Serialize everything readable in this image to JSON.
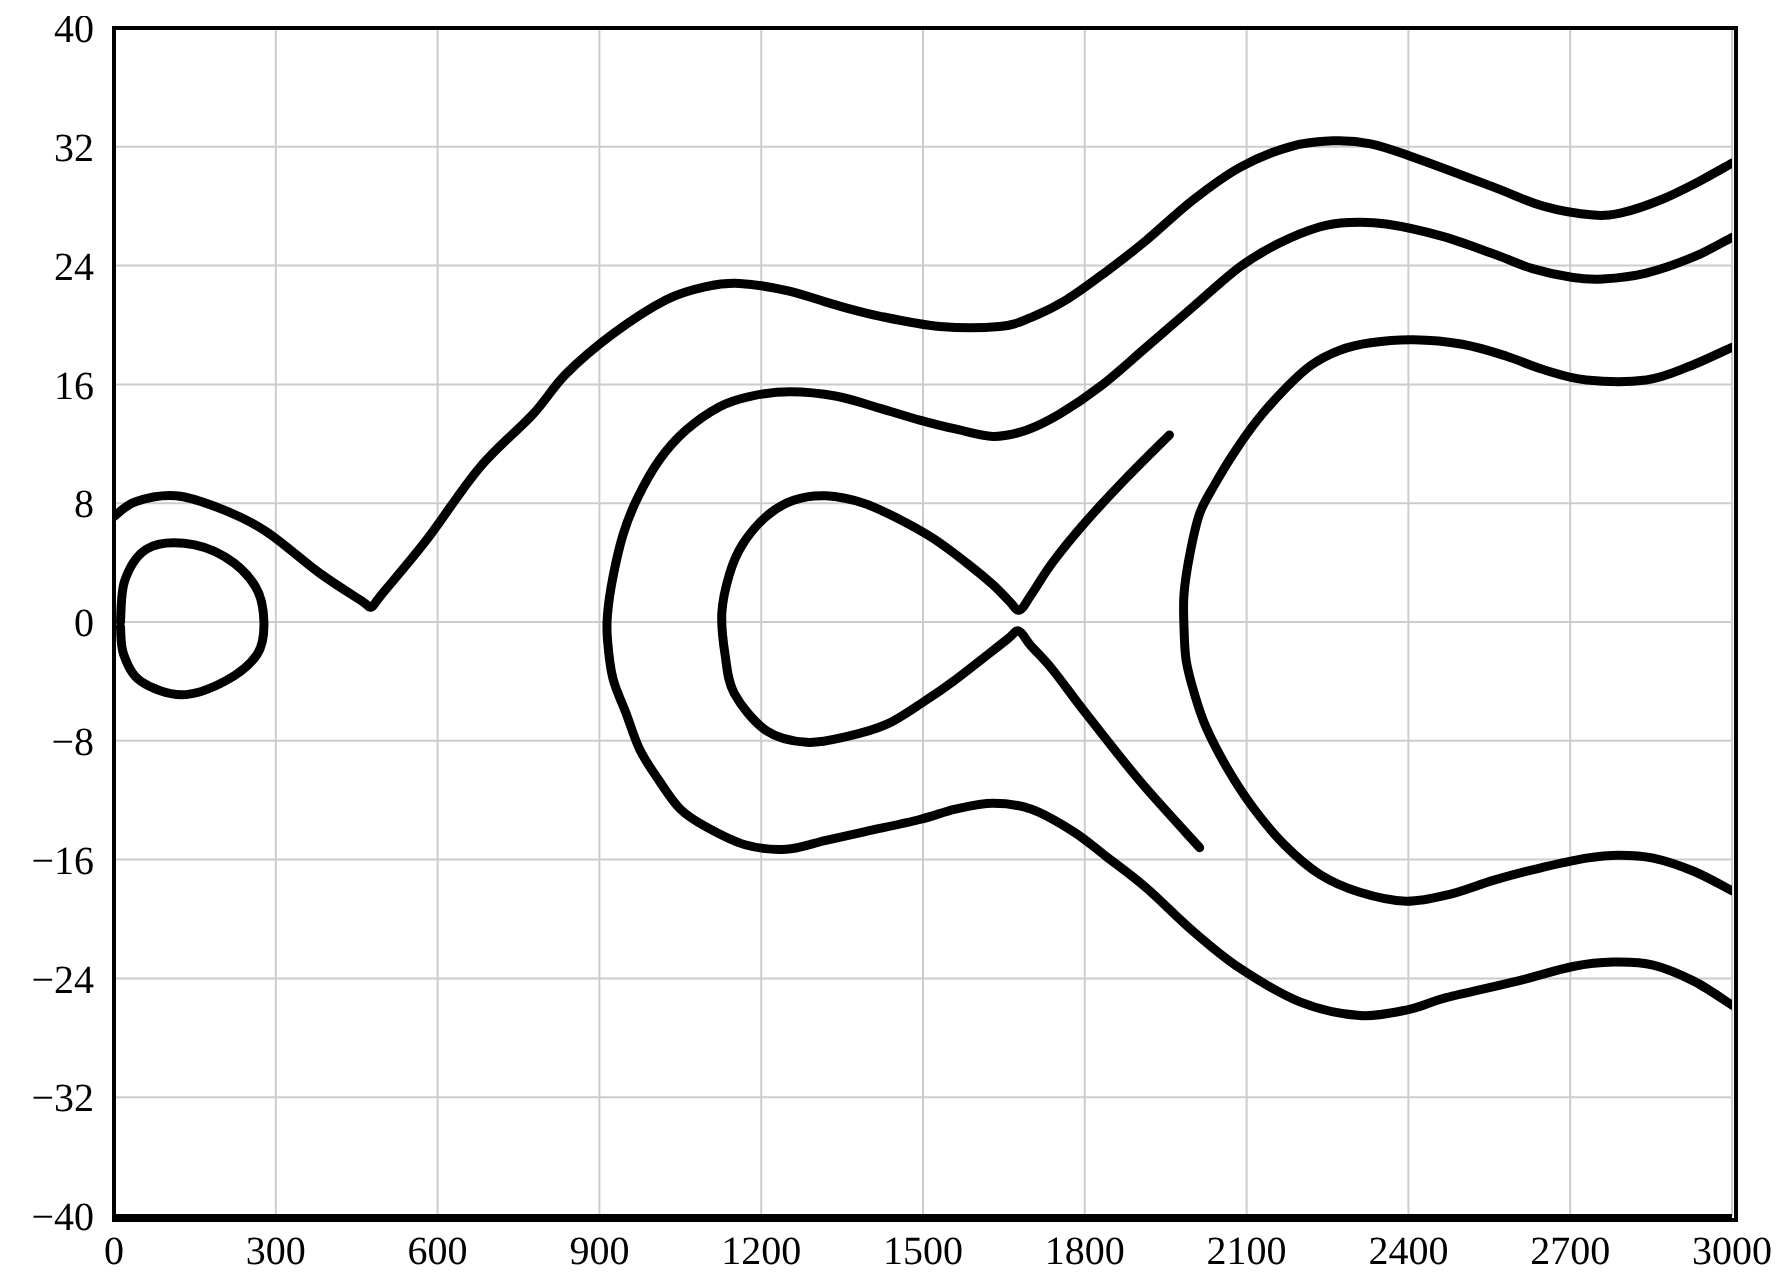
{
  "chart_data": {
    "type": "line",
    "xlim": [
      0,
      3000
    ],
    "ylim": [
      -40,
      40
    ],
    "xticks": [
      0,
      300,
      600,
      900,
      1200,
      1500,
      1800,
      2100,
      2400,
      2700,
      3000
    ],
    "yticks": [
      -40,
      -32,
      -24,
      -16,
      -8,
      0,
      8,
      16,
      24,
      32,
      40
    ],
    "grid": true,
    "marker": "none",
    "line_style": "solid",
    "series": [
      {
        "color": "#000000",
        "x": [
          3000,
          2930,
          2841,
          2760,
          2705,
          2630,
          2557,
          2460,
          2359,
          2290,
          2235,
          2160,
          2087,
          2000,
          1914,
          1830,
          1753,
          1690,
          1630,
          1560,
          1494,
          1419,
          1340,
          1253,
          1180,
          1123,
          1060,
          1011,
          970,
          944,
          925,
          915,
          915,
          925,
          950,
          975,
          1011,
          1050,
          1098,
          1170,
          1246,
          1320,
          1395,
          1494,
          1560,
          1630,
          1700,
          1778,
          1840,
          1914,
          2000,
          2087,
          2200,
          2310,
          2400,
          2470,
          2600,
          2705,
          2780,
          2854,
          2930,
          3000
        ],
        "values": [
          25.9,
          24.6,
          23.5,
          23.1,
          23.2,
          23.8,
          24.8,
          26.0,
          26.8,
          26.9,
          26.6,
          25.5,
          23.9,
          21.2,
          18.5,
          15.9,
          14.0,
          12.9,
          12.5,
          13.0,
          13.6,
          14.4,
          15.2,
          15.5,
          15.2,
          14.5,
          12.9,
          10.9,
          8.3,
          5.9,
          3.0,
          0.5,
          -1.2,
          -3.8,
          -6.2,
          -8.6,
          -10.7,
          -12.6,
          -13.8,
          -15.0,
          -15.3,
          -14.7,
          -14.1,
          -13.3,
          -12.6,
          -12.2,
          -12.6,
          -14.1,
          -15.8,
          -17.9,
          -20.8,
          -23.3,
          -25.6,
          -26.5,
          -26.1,
          -25.3,
          -24.2,
          -23.2,
          -22.9,
          -23.1,
          -24.2,
          -25.8
        ]
      },
      {
        "color": "#000000",
        "x": [
          0,
          40,
          115,
          200,
          282,
          381,
          460,
          477,
          495,
          579,
          678,
          777,
          838,
          925,
          1024,
          1100,
          1160,
          1250,
          1333,
          1419,
          1531,
          1642,
          1700,
          1766,
          1840,
          1914,
          2000,
          2087,
          2180,
          2260,
          2330,
          2409,
          2557,
          2650,
          2743,
          2800,
          2866,
          2930,
          3000
        ],
        "values": [
          7.1,
          8.1,
          8.5,
          7.6,
          6.1,
          3.3,
          1.4,
          1.0,
          1.8,
          5.5,
          10.4,
          14.0,
          16.7,
          19.4,
          21.7,
          22.6,
          22.8,
          22.3,
          21.4,
          20.6,
          19.9,
          19.9,
          20.5,
          21.7,
          23.6,
          25.7,
          28.4,
          30.6,
          32.0,
          32.4,
          32.2,
          31.3,
          29.3,
          28.0,
          27.4,
          27.6,
          28.4,
          29.5,
          30.9
        ]
      },
      {
        "color": "#000000",
        "x": [
          3000,
          2920,
          2841,
          2730,
          2650,
          2582,
          2500,
          2409,
          2330,
          2273,
          2220,
          2174,
          2120,
          2075,
          2040,
          2013,
          1995,
          1984,
          1984,
          1988,
          2003,
          2025,
          2065,
          2112,
          2170,
          2236,
          2310,
          2396,
          2480,
          2557,
          2640,
          2730,
          2790,
          2854,
          2930,
          3000
        ],
        "values": [
          18.5,
          17.2,
          16.3,
          16.3,
          17.0,
          17.9,
          18.7,
          19.0,
          18.8,
          18.3,
          17.3,
          15.8,
          13.6,
          11.3,
          9.2,
          7.3,
          4.6,
          1.9,
          -0.4,
          -2.6,
          -4.8,
          -7.1,
          -9.9,
          -12.5,
          -15.0,
          -17.0,
          -18.2,
          -18.8,
          -18.3,
          -17.4,
          -16.6,
          -15.9,
          -15.7,
          -15.9,
          -16.8,
          -18.1
        ]
      },
      {
        "color": "#000000",
        "x": [
          1957,
          1880,
          1803,
          1740,
          1700,
          1679,
          1660,
          1630,
          1580,
          1520,
          1457,
          1390,
          1320,
          1260,
          1209,
          1165,
          1141,
          1127,
          1133,
          1150,
          1209,
          1284,
          1360,
          1432,
          1500,
          1556,
          1655,
          1677,
          1700,
          1740,
          1803,
          1902,
          2013
        ],
        "values": [
          12.6,
          9.8,
          6.8,
          4.0,
          1.8,
          0.8,
          1.4,
          2.5,
          4.0,
          5.6,
          6.9,
          8.0,
          8.5,
          8.2,
          7.1,
          5.2,
          3.2,
          0.6,
          -2.2,
          -4.8,
          -7.3,
          -8.1,
          -7.7,
          -6.9,
          -5.4,
          -4.0,
          -1.2,
          -0.6,
          -1.6,
          -3.2,
          -6.2,
          -10.7,
          -15.2
        ]
      },
      {
        "color": "#000000",
        "x": [
          12,
          20,
          60,
          130,
          205,
          262,
          278,
          265,
          205,
          125,
          50,
          18,
          12
        ],
        "values": [
          0,
          2.8,
          4.9,
          5.3,
          4.4,
          2.4,
          0,
          -2.2,
          -4.0,
          -4.9,
          -4.0,
          -2.2,
          -0.3
        ]
      }
    ]
  }
}
